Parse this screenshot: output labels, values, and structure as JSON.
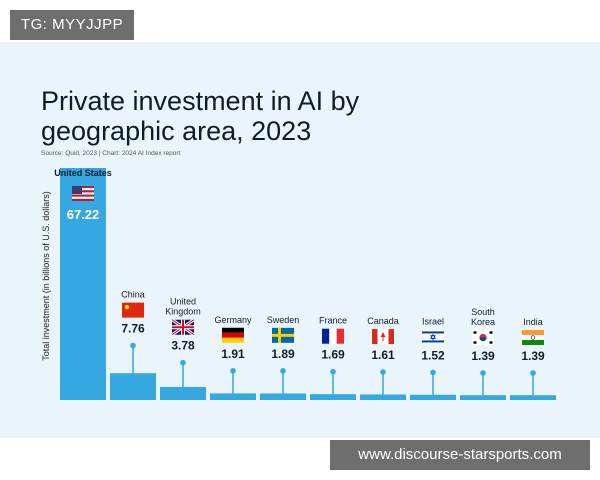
{
  "tag": "TG: MYYJJPP",
  "watermark": "www.discourse-starsports.com",
  "colors": {
    "bar": "#35a7e1",
    "panel": "#eaf4fb",
    "text": "#111c2a"
  },
  "chart_data": {
    "type": "bar",
    "title_lines": [
      "Private investment in AI by",
      "geographic area, 2023"
    ],
    "source": "Source: Quid, 2023 | Chart: 2024 AI Index report",
    "ylabel": "Total investment (in billions of U.S. dollars)",
    "xlabel": "",
    "grid": false,
    "categories": [
      [
        "United States"
      ],
      [
        "China"
      ],
      [
        "United",
        "Kingdom"
      ],
      [
        "Germany"
      ],
      [
        "Sweden"
      ],
      [
        "France"
      ],
      [
        "Canada"
      ],
      [
        "Israel"
      ],
      [
        "South",
        "Korea"
      ],
      [
        "India"
      ]
    ],
    "flags": [
      "us-flag",
      "china-flag",
      "uk-flag",
      "germany-flag",
      "sweden-flag",
      "france-flag",
      "canada-flag",
      "israel-flag",
      "south-korea-flag",
      "india-flag"
    ],
    "values": [
      67.22,
      7.76,
      3.78,
      1.91,
      1.89,
      1.69,
      1.61,
      1.52,
      1.39,
      1.39
    ],
    "value_labels": [
      "67.22",
      "7.76",
      "3.78",
      "1.91",
      "1.89",
      "1.69",
      "1.61",
      "1.52",
      "1.39",
      "1.39"
    ]
  }
}
